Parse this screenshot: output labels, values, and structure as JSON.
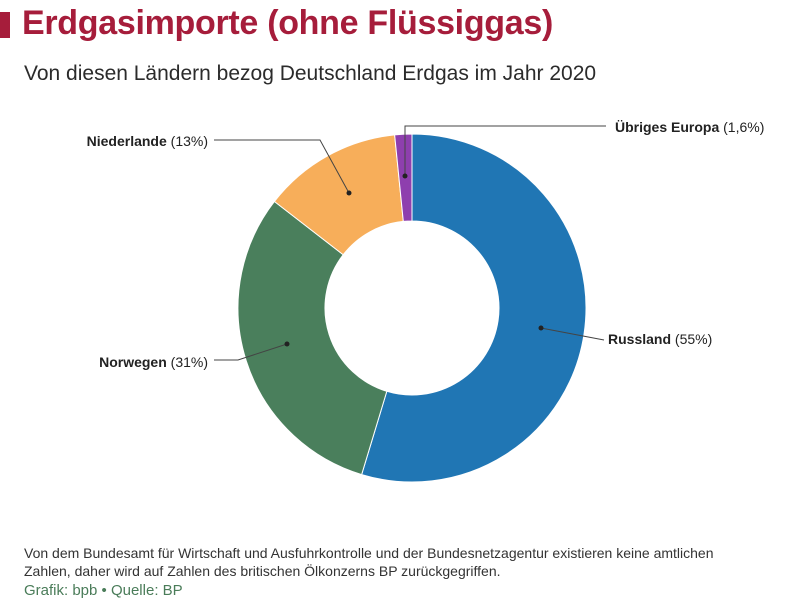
{
  "title": "Erdgasimporte (ohne Flüssiggas)",
  "subtitle": "Von diesen Ländern bezog Deutschland Erdgas im Jahr 2020",
  "note": "Von dem Bundesamt für Wirtschaft und Ausfuhrkontrolle und der Bundesnetzagentur existieren keine amtlichen Zahlen, daher wird auf Zahlen des britischen Ölkonzerns BP zurückgegriffen.",
  "source": "Grafik: bpb • Quelle: BP",
  "colors": {
    "accent": "#a61d3b",
    "source_text": "#4a7c59"
  },
  "chart_data": {
    "type": "pie",
    "style": "donut",
    "slices": [
      {
        "label": "Russland",
        "value_label": "(55%)",
        "value": 55,
        "color": "#2076b4"
      },
      {
        "label": "Norwegen",
        "value_label": "(31%)",
        "value": 31,
        "color": "#4a7f5c"
      },
      {
        "label": "Niederlande",
        "value_label": "(13%)",
        "value": 13,
        "color": "#f7ae5a"
      },
      {
        "label": "Übriges Europa",
        "value_label": "(1,6%)",
        "value": 1.6,
        "color": "#8e3fae"
      }
    ]
  }
}
